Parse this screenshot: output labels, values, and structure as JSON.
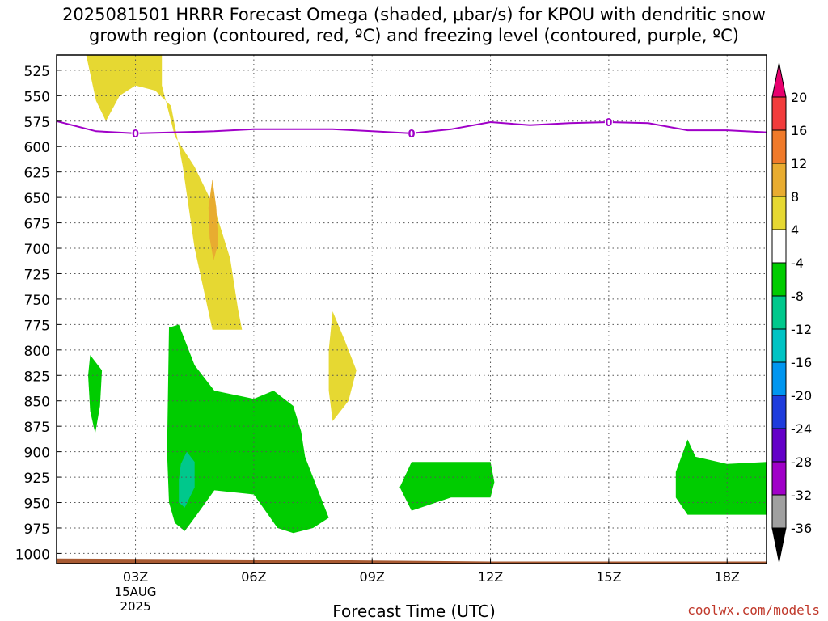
{
  "title_line1": "2025081501 HRRR Forecast Omega (shaded, μbar/s) for KPOU with dendritic snow",
  "title_line2": "growth region (contoured, red, ºC) and freezing level (contoured, purple, ºC)",
  "credit": "coolwx.com/models",
  "chart_data": {
    "type": "heatmap",
    "xlabel": "Forecast Time (UTC)",
    "ylabel": "",
    "x_unit": "hours since 00Z 15AUG 2025",
    "xlim": [
      1,
      19
    ],
    "ylim": [
      1010,
      510
    ],
    "x_ticks": [
      {
        "x": 3,
        "label": "03Z",
        "sub": [
          "15AUG",
          "2025"
        ]
      },
      {
        "x": 6,
        "label": "06Z",
        "sub": []
      },
      {
        "x": 9,
        "label": "09Z",
        "sub": []
      },
      {
        "x": 12,
        "label": "12Z",
        "sub": []
      },
      {
        "x": 15,
        "label": "15Z",
        "sub": []
      },
      {
        "x": 18,
        "label": "18Z",
        "sub": []
      }
    ],
    "y_ticks": [
      525,
      550,
      575,
      600,
      625,
      650,
      675,
      700,
      725,
      750,
      775,
      800,
      825,
      850,
      875,
      900,
      925,
      950,
      975,
      1000
    ],
    "grid": true,
    "colorbar": {
      "unit": "μbar/s",
      "labels": [
        20,
        16,
        12,
        8,
        4,
        -4,
        -8,
        -12,
        -16,
        -20,
        -24,
        -28,
        -32,
        -36
      ],
      "bins": [
        {
          "lo": 20,
          "hi": null,
          "color": "#e8006e"
        },
        {
          "lo": 16,
          "hi": 20,
          "color": "#f23c3c"
        },
        {
          "lo": 12,
          "hi": 16,
          "color": "#f07a2a"
        },
        {
          "lo": 8,
          "hi": 12,
          "color": "#e8ac30"
        },
        {
          "lo": 4,
          "hi": 8,
          "color": "#e6d832"
        },
        {
          "lo": -4,
          "hi": 4,
          "color": "#ffffff"
        },
        {
          "lo": -8,
          "hi": -4,
          "color": "#00cc00"
        },
        {
          "lo": -12,
          "hi": -8,
          "color": "#00c88c"
        },
        {
          "lo": -16,
          "hi": -12,
          "color": "#00c4c4"
        },
        {
          "lo": -20,
          "hi": -16,
          "color": "#0096f0"
        },
        {
          "lo": -24,
          "hi": -20,
          "color": "#1e3cdc"
        },
        {
          "lo": -28,
          "hi": -24,
          "color": "#6400c8"
        },
        {
          "lo": -32,
          "hi": -28,
          "color": "#a000c8"
        },
        {
          "lo": -36,
          "hi": -32,
          "color": "#a0a0a0"
        },
        {
          "lo": null,
          "hi": -36,
          "color": "#000000"
        }
      ]
    },
    "shaded_regions": [
      {
        "name": "",
        "range": "4 to 8",
        "color": "#e6d832",
        "polygon": [
          [
            1.75,
            510
          ],
          [
            3.67,
            510
          ],
          [
            3.67,
            540
          ],
          [
            4.0,
            590
          ],
          [
            4.5,
            620
          ],
          [
            5.0,
            660
          ],
          [
            5.4,
            710
          ],
          [
            5.6,
            760
          ],
          [
            5.7,
            780
          ],
          [
            4.95,
            780
          ],
          [
            4.5,
            700
          ],
          [
            4.2,
            620
          ],
          [
            3.9,
            560
          ],
          [
            3.5,
            545
          ],
          [
            3.0,
            540
          ],
          [
            2.6,
            550
          ],
          [
            2.25,
            575
          ],
          [
            2.0,
            555
          ],
          [
            1.75,
            510
          ]
        ]
      },
      {
        "name": "",
        "range": "8 to 12",
        "color": "#e8ac30",
        "polygon": [
          [
            4.95,
            632
          ],
          [
            5.05,
            660
          ],
          [
            5.1,
            695
          ],
          [
            4.98,
            712
          ],
          [
            4.88,
            690
          ],
          [
            4.85,
            660
          ],
          [
            4.95,
            632
          ]
        ]
      },
      {
        "name": "",
        "range": "4 to 8",
        "color": "#e6d832",
        "polygon": [
          [
            8.0,
            762
          ],
          [
            8.3,
            790
          ],
          [
            8.6,
            820
          ],
          [
            8.4,
            850
          ],
          [
            8.0,
            870
          ],
          [
            7.9,
            840
          ],
          [
            7.9,
            800
          ],
          [
            8.0,
            762
          ]
        ]
      },
      {
        "name": "",
        "range": "-8 to -4",
        "color": "#00cc00",
        "polygon": [
          [
            1.85,
            805
          ],
          [
            2.15,
            820
          ],
          [
            2.1,
            855
          ],
          [
            1.98,
            882
          ],
          [
            1.85,
            860
          ],
          [
            1.8,
            825
          ],
          [
            1.85,
            805
          ]
        ]
      },
      {
        "name": "",
        "range": "-8 to -4",
        "color": "#00cc00",
        "polygon": [
          [
            3.85,
            778
          ],
          [
            4.1,
            775
          ],
          [
            4.5,
            815
          ],
          [
            5.0,
            840
          ],
          [
            6.0,
            848
          ],
          [
            6.5,
            840
          ],
          [
            7.0,
            855
          ],
          [
            7.2,
            880
          ],
          [
            7.3,
            905
          ],
          [
            7.6,
            935
          ],
          [
            7.9,
            965
          ],
          [
            7.5,
            975
          ],
          [
            7.0,
            980
          ],
          [
            6.6,
            975
          ],
          [
            6.0,
            942
          ],
          [
            5.0,
            938
          ],
          [
            4.5,
            965
          ],
          [
            4.25,
            978
          ],
          [
            4.0,
            970
          ],
          [
            3.85,
            950
          ],
          [
            3.8,
            900
          ],
          [
            3.85,
            778
          ]
        ]
      },
      {
        "name": "",
        "range": "-12 to -8",
        "color": "#00c88c",
        "polygon": [
          [
            4.15,
            912
          ],
          [
            4.3,
            900
          ],
          [
            4.5,
            910
          ],
          [
            4.5,
            935
          ],
          [
            4.25,
            955
          ],
          [
            4.1,
            950
          ],
          [
            4.1,
            928
          ],
          [
            4.15,
            912
          ]
        ]
      },
      {
        "name": "",
        "range": "-8 to -4",
        "color": "#00cc00",
        "polygon": [
          [
            10.0,
            910
          ],
          [
            12.0,
            910
          ],
          [
            12.1,
            930
          ],
          [
            12.0,
            945
          ],
          [
            11.0,
            945
          ],
          [
            10.0,
            958
          ],
          [
            9.7,
            935
          ],
          [
            10.0,
            910
          ]
        ]
      },
      {
        "name": "",
        "range": "-8 to -4",
        "color": "#00cc00",
        "polygon": [
          [
            17.0,
            888
          ],
          [
            17.2,
            905
          ],
          [
            18.0,
            912
          ],
          [
            19.0,
            910
          ],
          [
            19.0,
            962
          ],
          [
            18.0,
            962
          ],
          [
            17.0,
            962
          ],
          [
            16.7,
            945
          ],
          [
            16.7,
            920
          ],
          [
            17.0,
            888
          ]
        ]
      }
    ],
    "freezing_level": {
      "name": "",
      "color": "#a000c8",
      "label_value": "0",
      "label_x": [
        3,
        10,
        15
      ],
      "x": [
        1,
        2,
        3,
        4,
        5,
        6,
        7,
        8,
        9,
        10,
        11,
        12,
        13,
        14,
        15,
        16,
        17,
        18,
        19
      ],
      "y": [
        575,
        585,
        587,
        586,
        585,
        583,
        583,
        583,
        585,
        587,
        583,
        576,
        579,
        577,
        576,
        577,
        584,
        584,
        586
      ]
    },
    "terrain": {
      "color": "#a85a32",
      "x": [
        1,
        6,
        9,
        12,
        19
      ],
      "y": [
        1005,
        1006,
        1007,
        1008,
        1008
      ]
    }
  }
}
